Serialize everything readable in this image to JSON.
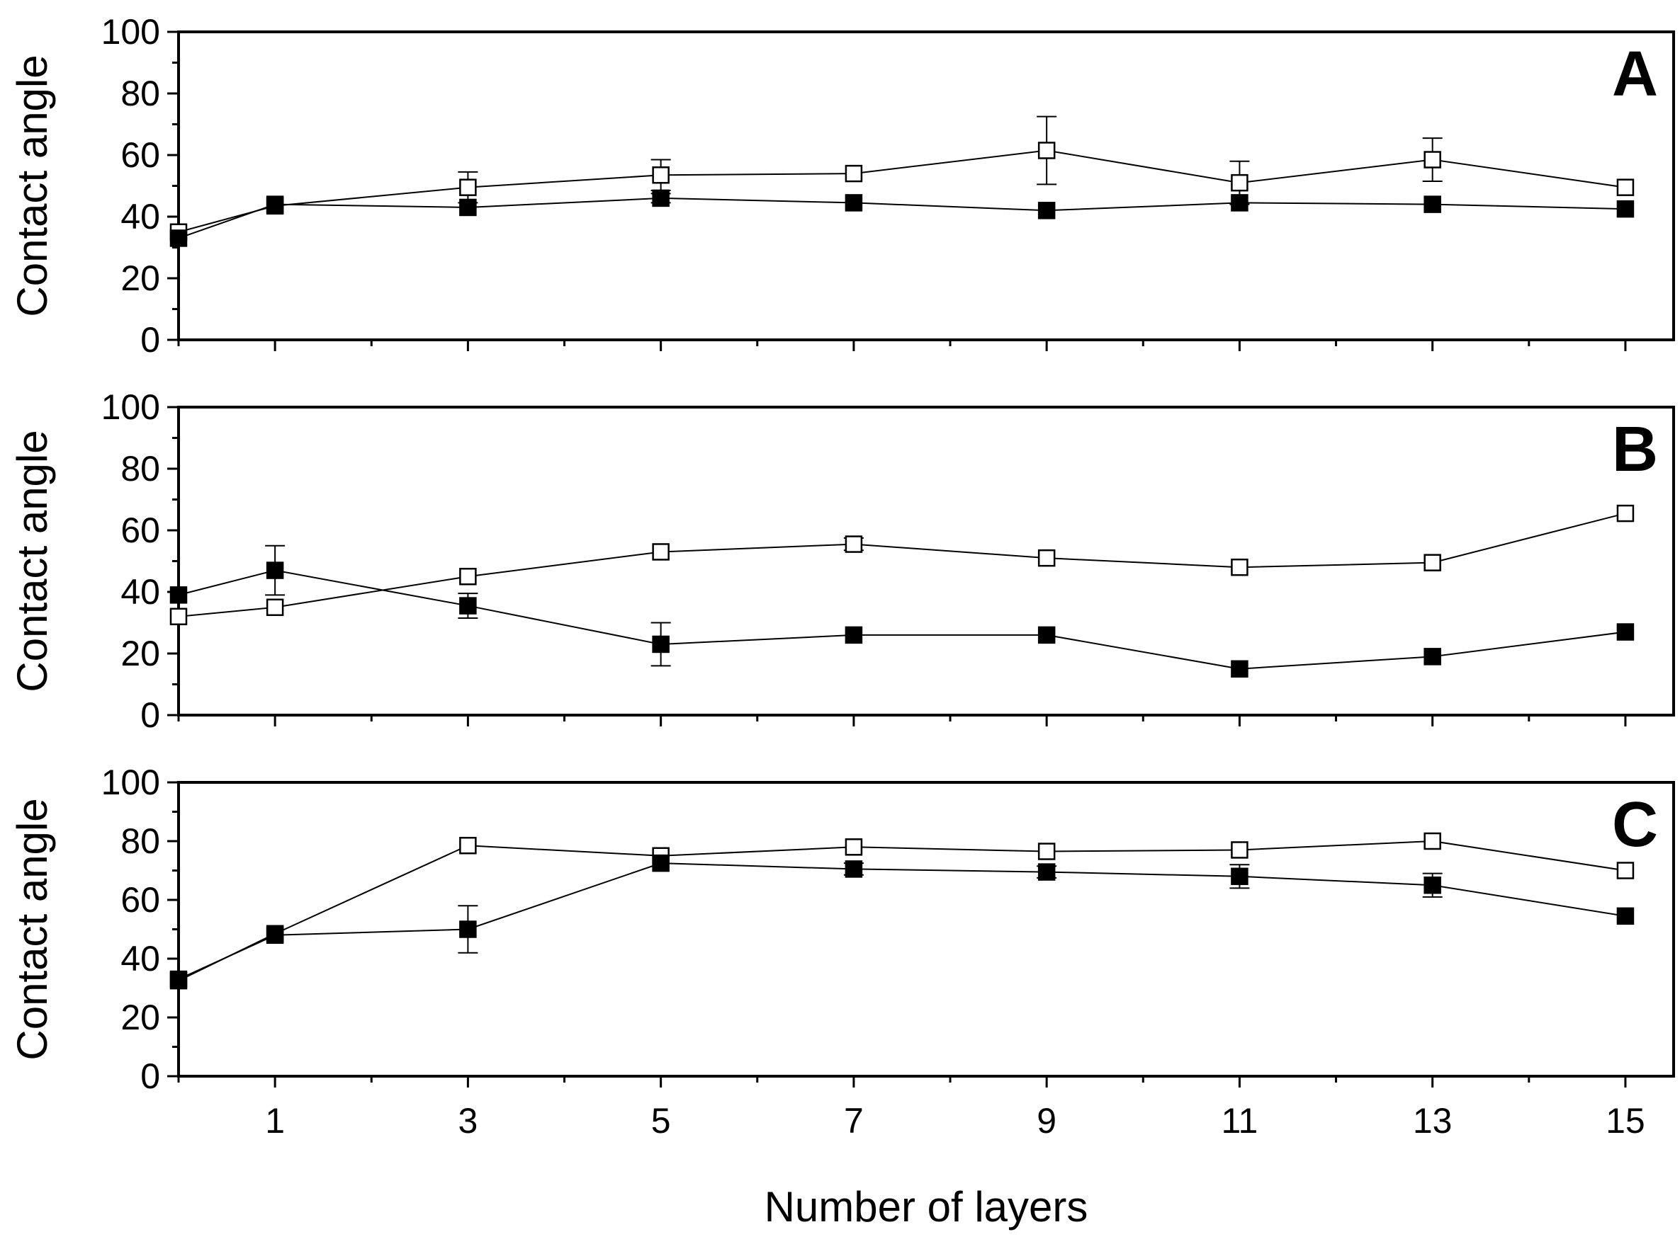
{
  "figure": {
    "shared_xlabel": "Number of layers",
    "shared_ylabel": "Contact angle"
  },
  "chart_data": [
    {
      "type": "line",
      "panel": "A",
      "xlabel": "Number of layers",
      "ylabel": "Contact angle",
      "xlim": [
        0,
        15.5
      ],
      "ylim": [
        0,
        100
      ],
      "xticks": [
        1,
        3,
        5,
        7,
        9,
        11,
        13,
        15
      ],
      "yticks": [
        0,
        20,
        40,
        60,
        80,
        100
      ],
      "show_xtick_labels": false,
      "grid": false,
      "x": [
        0,
        1,
        3,
        5,
        7,
        9,
        11,
        13,
        15
      ],
      "series": [
        {
          "marker": "square-filled",
          "values": [
            33,
            44,
            43,
            46,
            44.5,
            42,
            44.5,
            44,
            42.5
          ],
          "errors": [
            1,
            1,
            1,
            1.5,
            1,
            1,
            1,
            1,
            1
          ]
        },
        {
          "marker": "square-open",
          "values": [
            35,
            43.5,
            49.5,
            53.5,
            54,
            61.5,
            51,
            58.5,
            49.5
          ],
          "errors": [
            1,
            1,
            5,
            5,
            1,
            11,
            7,
            7,
            1
          ]
        }
      ]
    },
    {
      "type": "line",
      "panel": "B",
      "xlabel": "Number of layers",
      "ylabel": "Contact angle",
      "xlim": [
        0,
        15.5
      ],
      "ylim": [
        0,
        100
      ],
      "xticks": [
        1,
        3,
        5,
        7,
        9,
        11,
        13,
        15
      ],
      "yticks": [
        0,
        20,
        40,
        60,
        80,
        100
      ],
      "show_xtick_labels": false,
      "grid": false,
      "x": [
        0,
        1,
        3,
        5,
        7,
        9,
        11,
        13,
        15
      ],
      "series": [
        {
          "marker": "square-filled",
          "values": [
            39,
            47,
            35.5,
            23,
            26,
            26,
            15,
            19,
            27
          ],
          "errors": [
            1,
            8,
            4,
            7,
            1,
            1,
            1,
            1,
            1
          ]
        },
        {
          "marker": "square-open",
          "values": [
            32,
            35,
            45,
            53,
            55.5,
            51,
            48,
            49.5,
            65.5
          ],
          "errors": [
            1,
            1,
            1,
            1,
            2,
            1,
            1,
            1,
            1
          ]
        }
      ]
    },
    {
      "type": "line",
      "panel": "C",
      "xlabel": "Number of layers",
      "ylabel": "Contact angle",
      "xlim": [
        0,
        15.5
      ],
      "ylim": [
        0,
        100
      ],
      "xticks": [
        1,
        3,
        5,
        7,
        9,
        11,
        13,
        15
      ],
      "yticks": [
        0,
        20,
        40,
        60,
        80,
        100
      ],
      "show_xtick_labels": true,
      "grid": false,
      "x": [
        0,
        1,
        3,
        5,
        7,
        9,
        11,
        13,
        15
      ],
      "series": [
        {
          "marker": "square-filled",
          "values": [
            33,
            48,
            50,
            72.5,
            70.5,
            69.5,
            68,
            65,
            54.5
          ],
          "errors": [
            1,
            1,
            8,
            1,
            2,
            2,
            4,
            4,
            1
          ]
        },
        {
          "marker": "square-open",
          "values": [
            32.5,
            48.5,
            78.5,
            75,
            78,
            76.5,
            77,
            80,
            70
          ],
          "errors": [
            1,
            1,
            1,
            1,
            1,
            1,
            1,
            1,
            1
          ]
        }
      ]
    }
  ]
}
